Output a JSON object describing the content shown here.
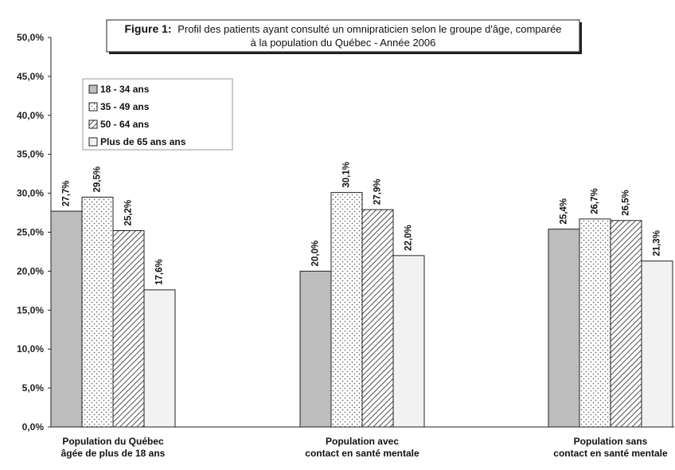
{
  "chart_data": {
    "type": "bar",
    "title_prefix": "Figure 1:",
    "title_line1": "Profil des patients ayant consulté un omnipraticien selon le groupe d'âge, comparée",
    "title_line2": "à la population du Québec - Année 2006",
    "categories": [
      [
        "Population du Québec",
        "âgée de plus de 18 ans"
      ],
      [
        "Population avec",
        "contact en santé mentale"
      ],
      [
        "Population sans",
        "contact en santé mentale"
      ]
    ],
    "series": [
      {
        "name": "18 - 34 ans",
        "values": [
          27.7,
          20.0,
          25.4
        ],
        "labels": [
          "27,7%",
          "20,0%",
          "25,4%"
        ],
        "fill": "#bdbdbd",
        "pattern": "solid"
      },
      {
        "name": "35 - 49 ans",
        "values": [
          29.5,
          30.1,
          26.7
        ],
        "labels": [
          "29,5%",
          "30,1%",
          "26,7%"
        ],
        "fill": "#ffffff",
        "pattern": "dots"
      },
      {
        "name": "50 - 64 ans",
        "values": [
          25.2,
          27.9,
          26.5
        ],
        "labels": [
          "25,2%",
          "27,9%",
          "26,5%"
        ],
        "fill": "#ffffff",
        "pattern": "diagonal"
      },
      {
        "name": "Plus de 65 ans ans",
        "values": [
          17.6,
          22.0,
          21.3
        ],
        "labels": [
          "17,6%",
          "22,0%",
          "21,3%"
        ],
        "fill": "#f2f2f2",
        "pattern": "solid"
      }
    ],
    "y_ticks": [
      "0,0%",
      "5,0%",
      "10,0%",
      "15,0%",
      "20,0%",
      "25,0%",
      "30,0%",
      "35,0%",
      "40,0%",
      "45,0%",
      "50,0%"
    ],
    "ylim": [
      0,
      50
    ],
    "grid": false,
    "legend_position": "top-left"
  }
}
